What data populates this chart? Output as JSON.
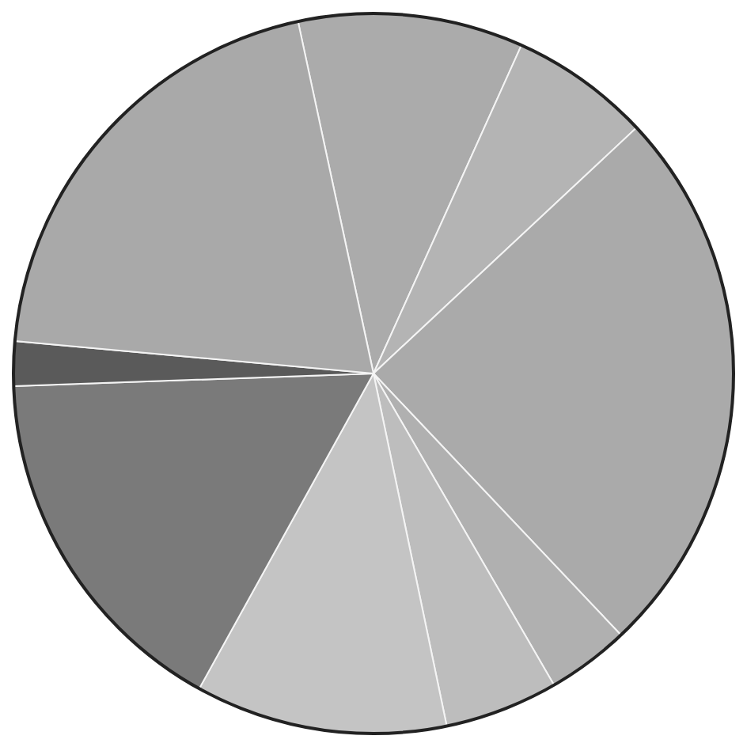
{
  "chart_data": {
    "type": "pie",
    "categories": [
      null,
      null,
      null,
      null,
      null,
      null,
      null,
      null,
      null
    ],
    "values": [
      10.1,
      6.3,
      24.9,
      3.7,
      5.1,
      11.3,
      16.4,
      2.0,
      20.2
    ],
    "colors": [
      "#ababab",
      "#b4b4b4",
      "#aaaaaa",
      "#b0b0b0",
      "#bdbdbd",
      "#c4c4c4",
      "#7a7a7a",
      "#5a5a5a",
      "#a9a9a9"
    ],
    "legend": false
  }
}
